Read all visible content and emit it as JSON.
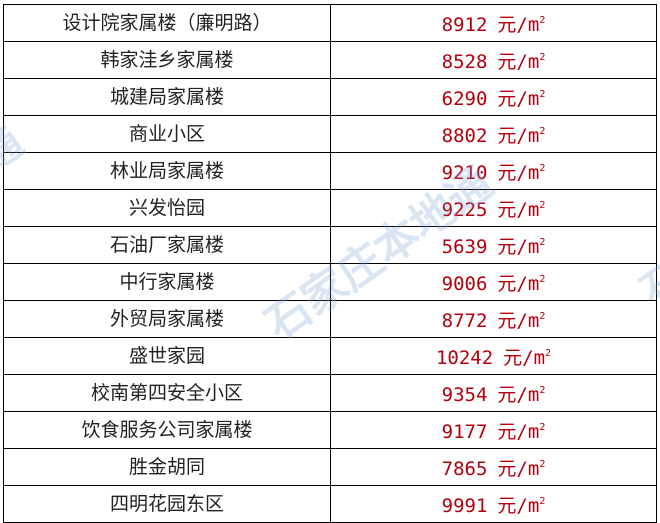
{
  "watermark": {
    "text": "石家庄本地通",
    "color": "#78a0d2"
  },
  "colors": {
    "price": "#b3000c",
    "name": "#222222"
  },
  "unit": {
    "base": "元/m",
    "exponent": "2"
  },
  "rows": [
    {
      "name": "设计院家属楼（廉明路）",
      "price": "8912"
    },
    {
      "name": "韩家洼乡家属楼",
      "price": "8528"
    },
    {
      "name": "城建局家属楼",
      "price": "6290"
    },
    {
      "name": "商业小区",
      "price": "8802"
    },
    {
      "name": "林业局家属楼",
      "price": "9210"
    },
    {
      "name": "兴发怡园",
      "price": "9225"
    },
    {
      "name": "石油厂家属楼",
      "price": "5639"
    },
    {
      "name": "中行家属楼",
      "price": "9006"
    },
    {
      "name": "外贸局家属楼",
      "price": "8772"
    },
    {
      "name": "盛世家园",
      "price": "10242"
    },
    {
      "name": "校南第四安全小区",
      "price": "9354"
    },
    {
      "name": "饮食服务公司家属楼",
      "price": "9177"
    },
    {
      "name": "胜金胡同",
      "price": "7865"
    },
    {
      "name": "四明花园东区",
      "price": "9991"
    }
  ]
}
